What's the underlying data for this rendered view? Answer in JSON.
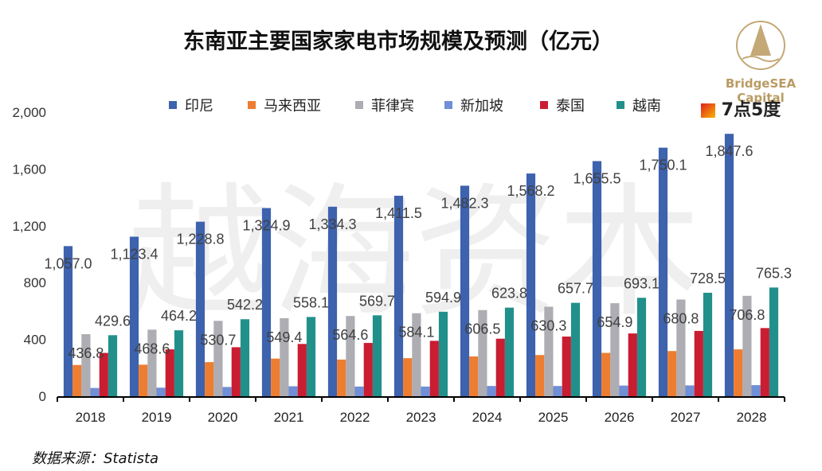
{
  "title": "东南亚主要国家家电市场规模及预测（亿元）",
  "source": "数据来源：Statista",
  "logos": {
    "brand1": "BridgeSEA Capital",
    "brand2": "7点5度"
  },
  "watermark": "越海资本",
  "chart_data": {
    "type": "bar",
    "categories": [
      "2018",
      "2019",
      "2020",
      "2021",
      "2022",
      "2023",
      "2024",
      "2025",
      "2026",
      "2027",
      "2028"
    ],
    "ylim": [
      0,
      2000
    ],
    "yticks": [
      "0",
      "400",
      "800",
      "1,200",
      "1,600",
      "2,000"
    ],
    "legend_position": "top",
    "grid": false,
    "series": [
      {
        "name": "印尼",
        "color": "#3d62ae",
        "values": [
          1057.0,
          1123.4,
          1228.8,
          1324.9,
          1334.3,
          1411.5,
          1482.3,
          1568.2,
          1655.5,
          1750.1,
          1847.6
        ],
        "labels": [
          "1,057.0",
          "1,123.4",
          "1,228.8",
          "1,324.9",
          "1,334.3",
          "1,411.5",
          "1,482.3",
          "1,568.2",
          "1,655.5",
          "1,750.1",
          "1,847.6"
        ]
      },
      {
        "name": "马来西亚",
        "color": "#ed7d31",
        "values": [
          220,
          222,
          240,
          265,
          258,
          268,
          280,
          290,
          305,
          318,
          330
        ]
      },
      {
        "name": "菲律宾",
        "color": "#adadb3",
        "values": [
          436.8,
          468.6,
          530.7,
          549.4,
          564.6,
          584.1,
          606.5,
          630.3,
          654.9,
          680.8,
          706.8
        ],
        "labels": [
          "436.8",
          "468.6",
          "530.7",
          "549.4",
          "564.6",
          "584.1",
          "606.5",
          "630.3",
          "654.9",
          "680.8",
          "706.8"
        ]
      },
      {
        "name": "新加坡",
        "color": "#6f8fd6",
        "values": [
          58,
          60,
          65,
          70,
          68,
          68,
          72,
          72,
          75,
          76,
          78
        ]
      },
      {
        "name": "泰国",
        "color": "#c91d32",
        "values": [
          305,
          330,
          345,
          368,
          375,
          390,
          405,
          420,
          442,
          460,
          480
        ]
      },
      {
        "name": "越南",
        "color": "#22908a",
        "values": [
          429.6,
          464.2,
          542.2,
          558.1,
          569.7,
          594.9,
          623.8,
          657.7,
          693.1,
          728.5,
          765.3
        ],
        "labels": [
          "429.6",
          "464.2",
          "542.2",
          "558.1",
          "569.7",
          "594.9",
          "623.8",
          "657.7",
          "693.1",
          "728.5",
          "765.3"
        ]
      }
    ]
  }
}
